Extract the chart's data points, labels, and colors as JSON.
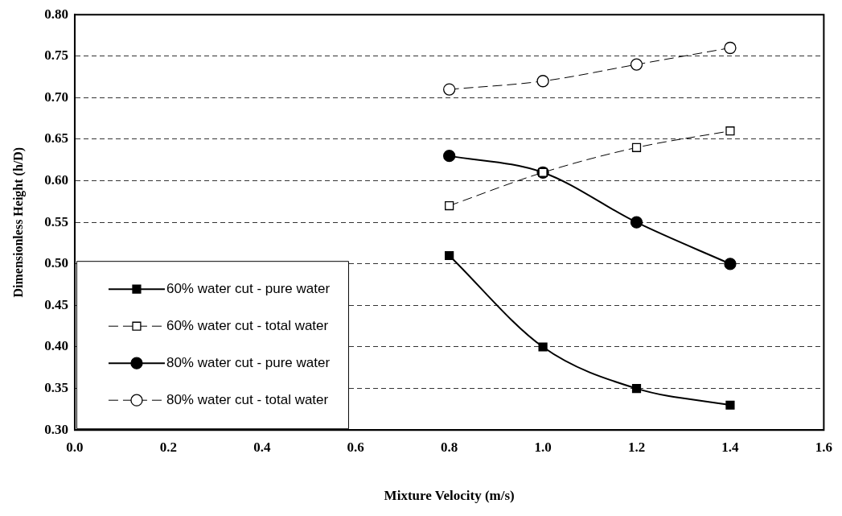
{
  "chart_data": {
    "type": "line",
    "xlabel": "Mixture Velocity (m/s)",
    "ylabel": "Dimensionless Height (h/D)",
    "x": [
      0.8,
      1.0,
      1.2,
      1.4
    ],
    "series": [
      {
        "name": "60% water cut - pure water",
        "color": "#000000",
        "values": [
          0.51,
          0.4,
          0.35,
          0.33
        ],
        "marker": "square",
        "line_style": "solid"
      },
      {
        "name": "60% water cut - total water",
        "color": "#000000",
        "values": [
          0.57,
          0.61,
          0.64,
          0.66
        ],
        "marker": "square",
        "line_style": "dashed"
      },
      {
        "name": "80% water cut - pure water",
        "color": "#000000",
        "values": [
          0.63,
          0.61,
          0.55,
          0.5
        ],
        "marker": "circle",
        "line_style": "solid"
      },
      {
        "name": "80% water cut - total water",
        "color": "#000000",
        "values": [
          0.71,
          0.72,
          0.74,
          0.76
        ],
        "marker": "circle",
        "line_style": "dashed"
      }
    ],
    "xlim": [
      0.0,
      1.6
    ],
    "xticks": [
      {
        "value": 0,
        "label": "0.0"
      },
      {
        "value": 0.2,
        "label": "0.2"
      },
      {
        "value": 0.4,
        "label": "0.4"
      },
      {
        "value": 0.6,
        "label": "0.6"
      },
      {
        "value": 0.8,
        "label": "0.8"
      },
      {
        "value": 1,
        "label": "1.0"
      },
      {
        "value": 1.2,
        "label": "1.2"
      },
      {
        "value": 1.4,
        "label": "1.4"
      },
      {
        "value": 1.6,
        "label": "1.6"
      }
    ],
    "ylim": [
      0.3,
      0.8
    ],
    "yticks": [
      {
        "value": 0.3,
        "label": "0.30"
      },
      {
        "value": 0.35,
        "label": "0.35"
      },
      {
        "value": 0.4,
        "label": "0.40"
      },
      {
        "value": 0.45,
        "label": "0.45"
      },
      {
        "value": 0.5,
        "label": "0.50"
      },
      {
        "value": 0.55,
        "label": "0.55"
      },
      {
        "value": 0.6,
        "label": "0.60"
      },
      {
        "value": 0.65,
        "label": "0.65"
      },
      {
        "value": 0.7,
        "label": "0.70"
      },
      {
        "value": 0.75,
        "label": "0.75"
      },
      {
        "value": 0.8,
        "label": "0.80"
      }
    ],
    "grid": "y",
    "legend": "bottom left"
  }
}
